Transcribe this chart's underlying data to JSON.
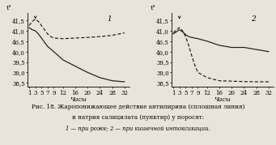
{
  "title_caption_line1": "Рис. 18. Жаропонижающее действие антипирина (сплошная линия)",
  "title_caption_line2": "и натрия салицилата (пунктир) у поросят:",
  "title_caption_line3": "1 — при роже; 2 — при кишечной интоксикации.",
  "xlabel": "Часы",
  "ylabel": "t°",
  "yticks": [
    38.5,
    39.0,
    39.5,
    40.0,
    40.5,
    41.0,
    41.5
  ],
  "ytick_labels": [
    "38,5",
    "39,0",
    "39,5",
    "40,0",
    "40,5",
    "41,0",
    "41,5"
  ],
  "xticks": [
    1,
    3,
    5,
    7,
    9,
    12,
    16,
    20,
    24,
    28,
    32
  ],
  "ylim": [
    38.3,
    41.85
  ],
  "xlim": [
    0.5,
    33.5
  ],
  "plot1": {
    "label": "1",
    "solid_x": [
      1,
      2,
      3,
      4,
      5,
      6,
      7,
      9,
      12,
      16,
      20,
      24,
      28,
      32
    ],
    "solid_y": [
      41.15,
      41.05,
      41.0,
      40.85,
      40.65,
      40.45,
      40.25,
      40.0,
      39.6,
      39.3,
      39.0,
      38.75,
      38.6,
      38.55
    ],
    "dashed_x": [
      1,
      2,
      3,
      4,
      5,
      6,
      7,
      8,
      9,
      12,
      16,
      20,
      24,
      28,
      32
    ],
    "dashed_y": [
      41.25,
      41.45,
      41.55,
      41.45,
      41.25,
      41.05,
      40.85,
      40.72,
      40.65,
      40.62,
      40.65,
      40.68,
      40.72,
      40.78,
      40.9
    ]
  },
  "plot2": {
    "label": "2",
    "solid_x": [
      1,
      2,
      3,
      4,
      5,
      6,
      7,
      8,
      9,
      12,
      16,
      20,
      24,
      28,
      32
    ],
    "solid_y": [
      40.85,
      40.95,
      41.05,
      40.95,
      40.82,
      40.72,
      40.68,
      40.65,
      40.62,
      40.5,
      40.3,
      40.2,
      40.2,
      40.1,
      40.0
    ],
    "dashed_x": [
      1,
      2,
      3,
      4,
      5,
      6,
      7,
      8,
      9,
      12,
      16,
      20,
      24,
      28,
      32
    ],
    "dashed_y": [
      40.9,
      41.05,
      41.15,
      41.0,
      40.72,
      40.3,
      39.8,
      39.35,
      39.0,
      38.75,
      38.6,
      38.58,
      38.56,
      38.55,
      38.55
    ]
  },
  "line_color": "#1a1a1a",
  "bg_color": "#e8e4dc",
  "fontsize_ticks": 5.0,
  "fontsize_label": 5.5,
  "fontsize_caption": 5.2,
  "fontsize_number": 6.5
}
